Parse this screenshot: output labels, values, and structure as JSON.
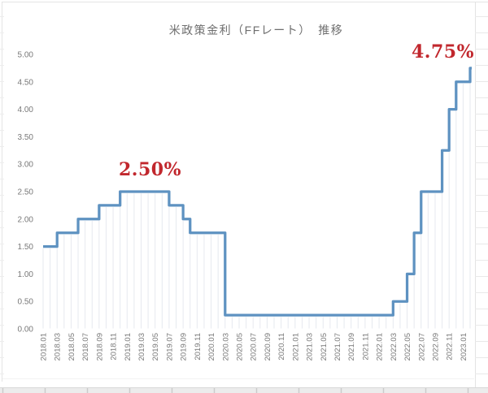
{
  "chart_data": {
    "type": "line",
    "subtype": "step",
    "title": "米政策金利（FFレート）　推移",
    "xlabel": "",
    "ylabel": "",
    "ylim": [
      0,
      5
    ],
    "ytick_step": 0.5,
    "grid": "monthly vertical drop lines under the series only",
    "legend": "none",
    "x": [
      "2018.01",
      "2018.02",
      "2018.03",
      "2018.04",
      "2018.05",
      "2018.06",
      "2018.07",
      "2018.08",
      "2018.09",
      "2018.10",
      "2018.11",
      "2018.12",
      "2019.01",
      "2019.02",
      "2019.03",
      "2019.04",
      "2019.05",
      "2019.06",
      "2019.07",
      "2019.08",
      "2019.09",
      "2019.10",
      "2019.11",
      "2019.12",
      "2020.01",
      "2020.02",
      "2020.03",
      "2020.04",
      "2020.05",
      "2020.06",
      "2020.07",
      "2020.08",
      "2020.09",
      "2020.10",
      "2020.11",
      "2020.12",
      "2021.01",
      "2021.02",
      "2021.03",
      "2021.04",
      "2021.05",
      "2021.06",
      "2021.07",
      "2021.08",
      "2021.09",
      "2021.10",
      "2021.11",
      "2021.12",
      "2022.01",
      "2022.02",
      "2022.03",
      "2022.04",
      "2022.05",
      "2022.06",
      "2022.07",
      "2022.08",
      "2022.09",
      "2022.10",
      "2022.11",
      "2022.12",
      "2023.01",
      "2023.02"
    ],
    "values": [
      1.5,
      1.5,
      1.75,
      1.75,
      1.75,
      2.0,
      2.0,
      2.0,
      2.25,
      2.25,
      2.25,
      2.5,
      2.5,
      2.5,
      2.5,
      2.5,
      2.5,
      2.5,
      2.25,
      2.25,
      2.0,
      1.75,
      1.75,
      1.75,
      1.75,
      1.75,
      0.25,
      0.25,
      0.25,
      0.25,
      0.25,
      0.25,
      0.25,
      0.25,
      0.25,
      0.25,
      0.25,
      0.25,
      0.25,
      0.25,
      0.25,
      0.25,
      0.25,
      0.25,
      0.25,
      0.25,
      0.25,
      0.25,
      0.25,
      0.25,
      0.5,
      0.5,
      1.0,
      1.75,
      2.5,
      2.5,
      2.5,
      3.25,
      4.0,
      4.5,
      4.5,
      4.75
    ],
    "x_tick_labels": [
      "2018.01",
      "2018.03",
      "2018.05",
      "2018.07",
      "2018.09",
      "2018.11",
      "2019.01",
      "2019.03",
      "2019.05",
      "2019.07",
      "2019.09",
      "2019.11",
      "2020.01",
      "2020.03",
      "2020.05",
      "2020.07",
      "2020.09",
      "2020.11",
      "2021.01",
      "2021.03",
      "2021.05",
      "2021.07",
      "2021.09",
      "2021.11",
      "2022.01",
      "2022.03",
      "2022.05",
      "2022.07",
      "2022.09",
      "2022.11",
      "2023.01"
    ],
    "y_ticks": [
      "0.00",
      "0.50",
      "1.00",
      "1.50",
      "2.00",
      "2.50",
      "3.00",
      "3.50",
      "4.00",
      "4.50",
      "5.00"
    ],
    "annotations": [
      {
        "text": "2.50%",
        "anchor_month": "2019.01",
        "anchor_value": 2.5
      },
      {
        "text": "4.75%",
        "anchor_month": "2022.12",
        "anchor_value": 4.75
      }
    ],
    "colors": {
      "line": "#5e92c1",
      "annotation": "#c1272d",
      "tick_label": "#787878",
      "title": "#6e6e6e",
      "drop_line": "#e6e9ef",
      "sheet_grid": "#e4e4e4",
      "sheet_strip_fill": "#ececec",
      "sheet_strip_line": "#cbcbcb"
    }
  }
}
